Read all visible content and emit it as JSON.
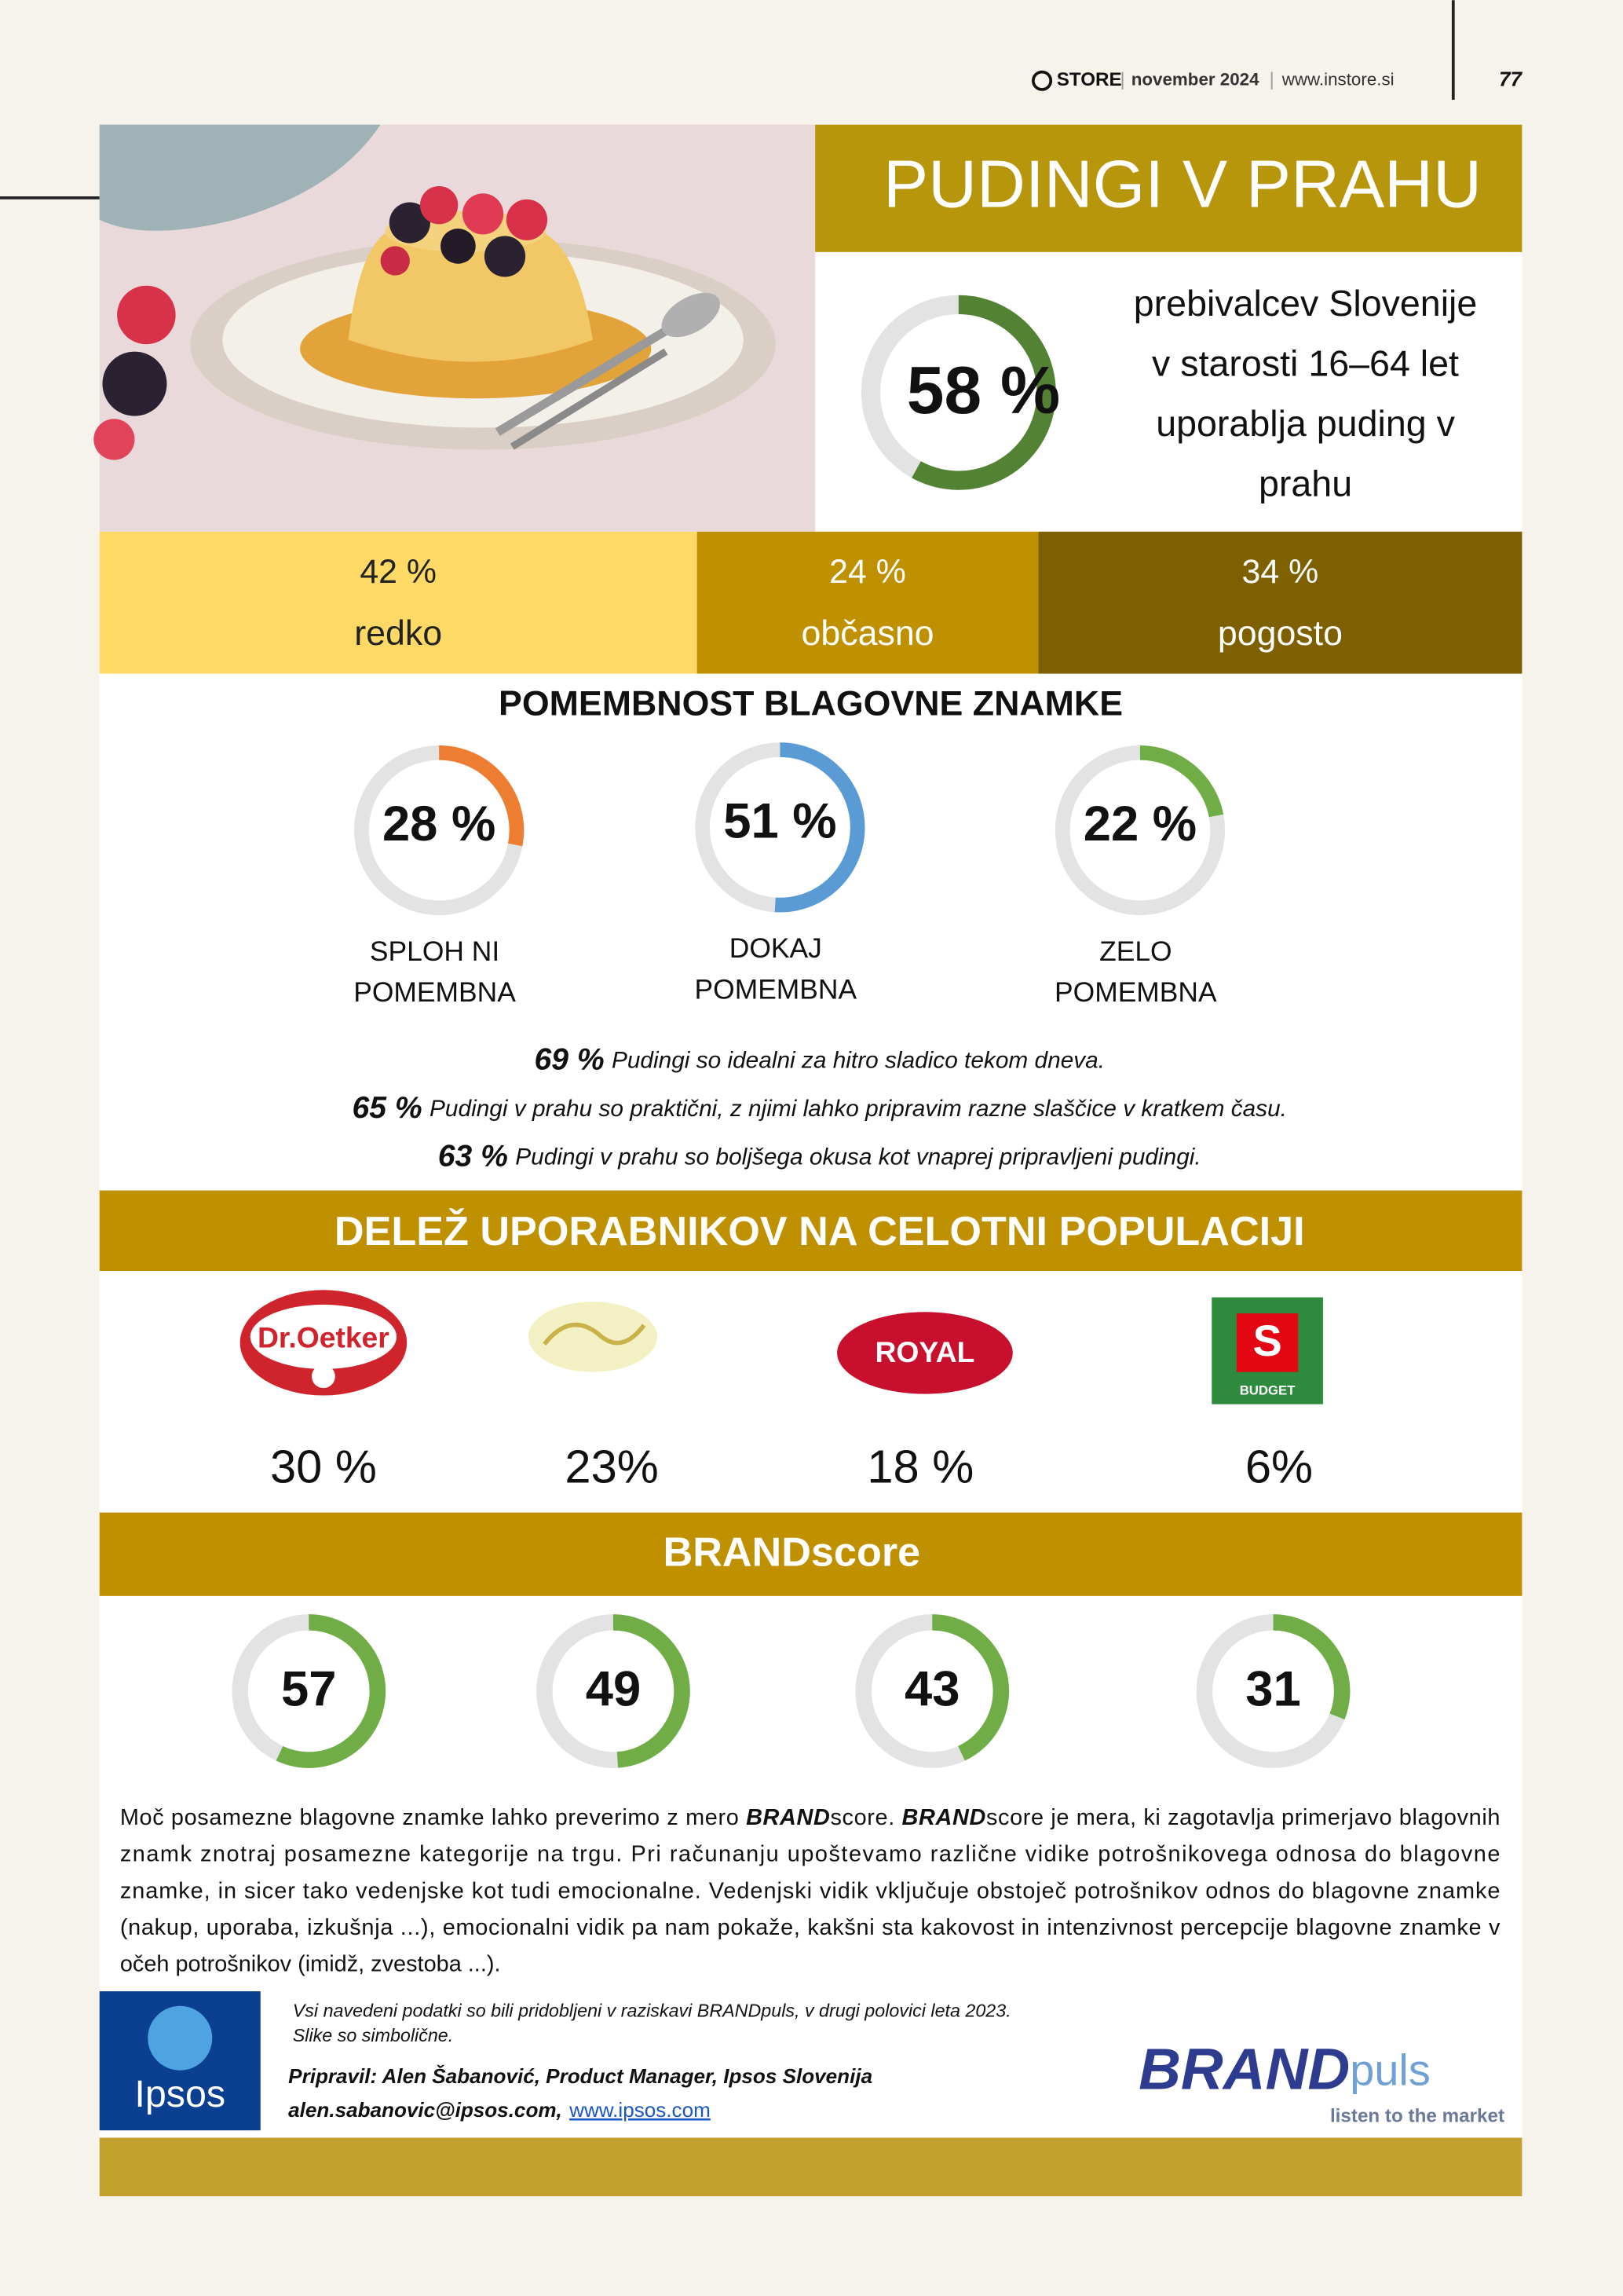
{
  "header": {
    "logo": "STORE",
    "date": "november 2024",
    "website": "www.instore.si",
    "page": "77"
  },
  "title": "PUDINGI V PRAHU",
  "usage": {
    "value": 58,
    "value_label": "58 %",
    "color": "#548235",
    "description": [
      "prebivalcev Slovenije",
      "v starosti 16–64 let",
      "uporablja puding v",
      "prahu"
    ]
  },
  "frequency": {
    "segments": [
      {
        "value": 42,
        "value_label": "42 %",
        "label": "redko",
        "color": "#ffd966",
        "text_color": "#222222"
      },
      {
        "value": 24,
        "value_label": "24 %",
        "label": "občasno",
        "color": "#bf9000",
        "text_color": "#ffffff"
      },
      {
        "value": 34,
        "value_label": "34 %",
        "label": "pogosto",
        "color": "#7f6000",
        "text_color": "#ffffff"
      }
    ]
  },
  "brand_importance": {
    "title": "POMEMBNOST BLAGOVNE ZNAMKE",
    "items": [
      {
        "value": 28,
        "value_label": "28 %",
        "label": [
          "SPLOH NI",
          "POMEMBNA"
        ],
        "color": "#ed7d31"
      },
      {
        "value": 51,
        "value_label": "51 %",
        "label": [
          "DOKAJ",
          "POMEMBNA"
        ],
        "color": "#5b9bd5"
      },
      {
        "value": 22,
        "value_label": "22 %",
        "label": [
          "ZELO",
          "POMEMBNA"
        ],
        "color": "#70ad47"
      }
    ]
  },
  "statements": [
    {
      "share": "69 %",
      "text": "Pudingi so idealni za hitro sladico tekom dneva."
    },
    {
      "share": "65 %",
      "text": "Pudingi v prahu so praktični, z njimi lahko pripravim razne slaščice v kratkem času."
    },
    {
      "share": "63 %",
      "text": "Pudingi v prahu so boljšega okusa kot vnaprej pripravljeni pudingi."
    }
  ],
  "population_share": {
    "title": "DELEŽ UPORABNIKOV NA CELOTNI POPULACIJI",
    "brands": [
      {
        "logo": "Dr.Oetker",
        "share": "30 %"
      },
      {
        "share": "23%"
      },
      {
        "logo": "ROYAL",
        "share": "18 %"
      },
      {
        "logo": "S",
        "logo_caption": "BUDGET",
        "share": "6%"
      }
    ]
  },
  "brandscore": {
    "title": "BRANDscore",
    "scores": [
      57,
      49,
      43,
      31
    ],
    "color": "#70ad47"
  },
  "description": [
    [
      {
        "text": "Moč posamezne blagovne znamke lahko preverimo z mero "
      },
      {
        "text": "BRAND",
        "emphasis": true
      },
      {
        "text": "score. "
      },
      {
        "text": "BRAND",
        "emphasis": true
      },
      {
        "text": "score je mera, ki zagotavlja primerjavo blagovnih"
      }
    ],
    [
      {
        "text": "znamk znotraj posamezne kategorije na trgu. Pri računanju upoštevamo različne vidike potrošnikovega odnosa do blagovne"
      }
    ],
    [
      {
        "text": "znamke, in sicer tako vedenjske kot tudi emocionalne. Vedenjski vidik vključuje obstoječ potrošnikov odnos do blagovne znamke"
      }
    ],
    [
      {
        "text": "(nakup, uporaba, izkušnja ...), emocionalni vidik pa nam pokaže, kakšni sta kakovost in intenzivnost percepcije blagovne znamke v"
      }
    ],
    [
      {
        "text": "očeh potrošnikov (imidž, zvestoba ...)."
      }
    ]
  ],
  "footer": {
    "notes": [
      "Vsi navedeni podatki so bili pridobljeni v raziskavi BRANDpuls, v drugi polovici leta 2023.",
      "Slike so simbolične."
    ],
    "prepared_by": "Pripravil: Alen Šabanović, Product Manager, Ipsos Slovenija",
    "email": "alen.sabanovic@ipsos.com,",
    "website": "www.ipsos.com",
    "ipsos_logo": "Ipsos",
    "brandpuls_logo": {
      "brand": "BRAND",
      "suffix": "puls",
      "tagline": "listen to the market"
    }
  }
}
